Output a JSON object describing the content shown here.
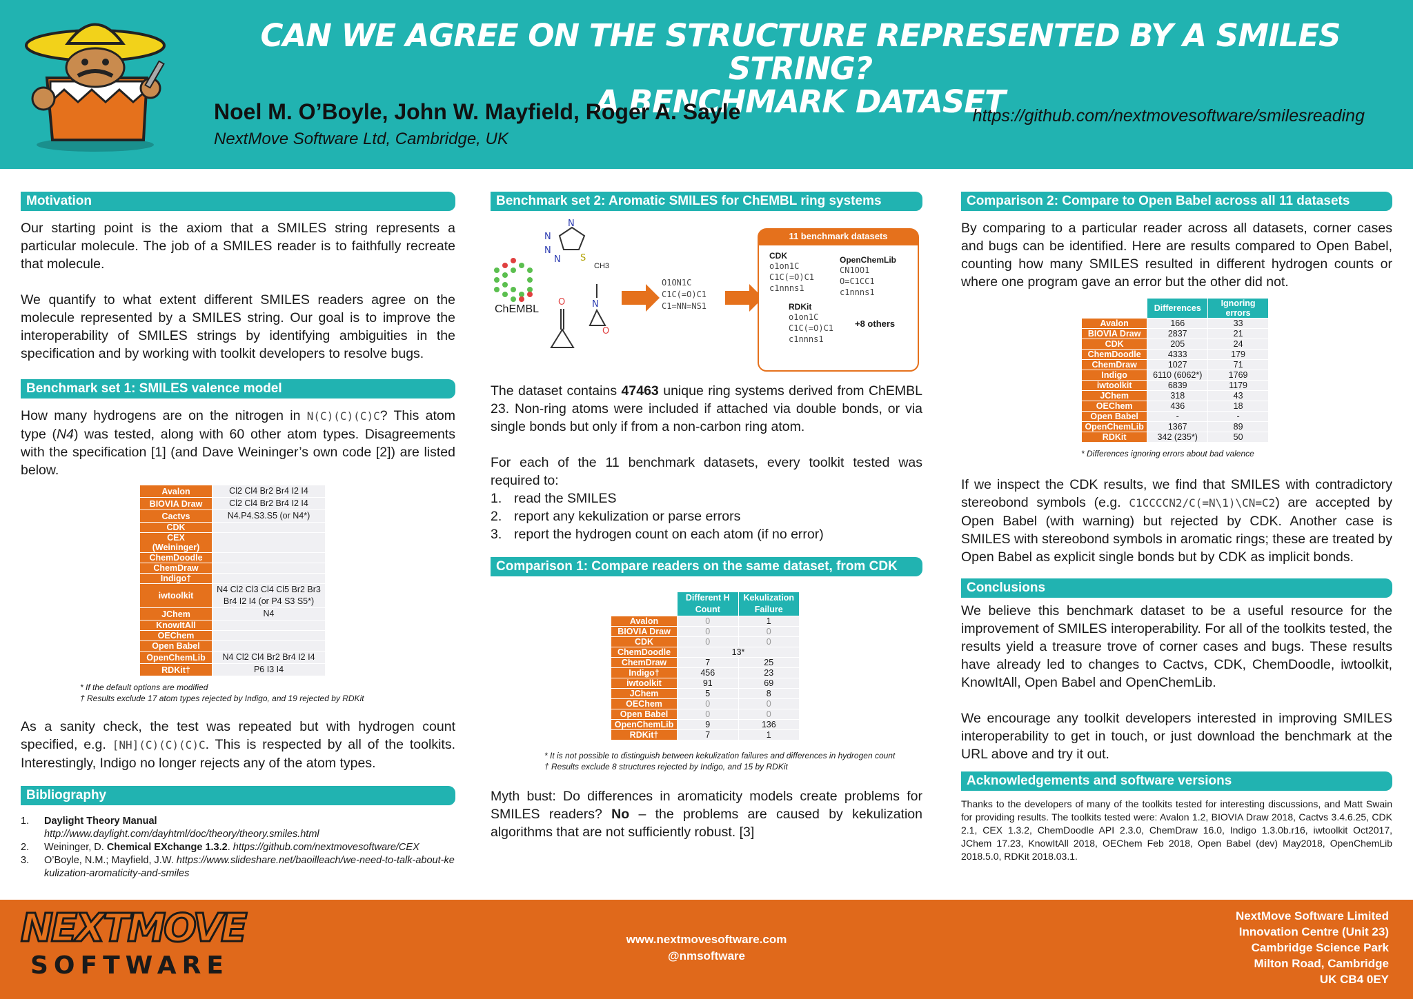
{
  "header": {
    "title_line1": "CAN WE AGREE ON THE STRUCTURE REPRESENTED BY A SMILES STRING?",
    "title_line2": "A BENCHMARK DATASET",
    "authors": "Noel M. O’Boyle, John W. Mayfield, Roger A. Sayle",
    "affiliation": "NextMove Software Ltd, Cambridge, UK",
    "url": "https://github.com/nextmovesoftware/smilesreading"
  },
  "motivation": {
    "heading": "Motivation",
    "p1": "Our starting point is the axiom that a SMILES string represents a particular molecule. The job of a SMILES reader is to faithfully recreate that molecule.",
    "p2": "We quantify to what extent different SMILES readers agree on the molecule represented by a SMILES string. Our goal is to improve the interoperability of SMILES strings by identifying ambiguities in the specification and by working with toolkit developers to resolve bugs."
  },
  "bench1": {
    "heading": "Benchmark set 1: SMILES valence model",
    "p1a": "How many hydrogens are on the nitrogen in",
    "p1code": "N(C)(C)(C)C",
    "p1b": "? This atom type (",
    "p1n4": "N4",
    "p1c": ") was tested, along with 60 other atom types. Disagreements with the specification [1] (and Dave Weininger’s own code [2]) are listed below.",
    "rows": [
      {
        "name": "Avalon",
        "val": "Cl2 Cl4 Br2 Br4 I2 I4"
      },
      {
        "name": "BIOVIA Draw",
        "val": "Cl2 Cl4 Br2 Br4 I2 I4"
      },
      {
        "name": "Cactvs",
        "val": "N4.P4.S3.S5 (or N4*)"
      },
      {
        "name": "CDK",
        "val": ""
      },
      {
        "name": "CEX (Weininger)",
        "val": ""
      },
      {
        "name": "ChemDoodle",
        "val": ""
      },
      {
        "name": "ChemDraw",
        "val": ""
      },
      {
        "name": "Indigo†",
        "val": ""
      },
      {
        "name": "iwtoolkit",
        "val": "N4 Cl2 Cl3 Cl4 Cl5 Br2 Br3 Br4 I2 I4 (or P4 S3 S5*)"
      },
      {
        "name": "JChem",
        "val": "N4"
      },
      {
        "name": "KnowItAll",
        "val": ""
      },
      {
        "name": "OEChem",
        "val": ""
      },
      {
        "name": "Open Babel",
        "val": ""
      },
      {
        "name": "OpenChemLib",
        "val": "N4 Cl2 Cl4 Br2 Br4 I2 I4"
      },
      {
        "name": "RDKit†",
        "val": "P6 I3 I4"
      }
    ],
    "note1": "* If the default options are modified",
    "note2": "† Results exclude 17 atom types rejected by Indigo, and 19 rejected by RDKit",
    "p2a": "As a sanity check, the test was repeated but with hydrogen count specified, e.g.",
    "p2code": "[NH](C)(C)(C)C",
    "p2b": ". This is respected by all of the toolkits. Interestingly, Indigo no longer rejects any of the atom types."
  },
  "biblio": {
    "heading": "Bibliography",
    "items": [
      {
        "n": "1.",
        "bold": "Daylight Theory Manual",
        "rest": "",
        "url": "http://www.daylight.com/dayhtml/doc/theory/theory.smiles.html"
      },
      {
        "n": "2.",
        "pre": "Weininger, D.",
        "bold": "Chemical EXchange 1.3.2",
        "url": "https://github.com/nextmovesoftware/CEX"
      },
      {
        "n": "3.",
        "pre": "O’Boyle, N.M.; Mayfield, J.W.",
        "url": "https://www.slideshare.net/baoilleach/we-need-to-talk-about-kekulization-aromaticity-and-smiles"
      }
    ]
  },
  "bench2": {
    "heading": "Benchmark set 2: Aromatic SMILES for ChEMBL ring systems",
    "chembl_label": "ChEMBL",
    "methyl_label": "CH3",
    "smiles_lines": [
      "O1ON1C",
      "C1C(=O)C1",
      "C1=NN=NS1"
    ],
    "box_title": "11 benchmark datasets",
    "cdk_label": "CDK",
    "cdk_lines": [
      "o1on1C",
      "C1C(=O)C1",
      "c1nnns1"
    ],
    "ocl_label": "OpenChemLib",
    "ocl_lines": [
      "CN1OO1",
      "O=C1CC1",
      "c1nnns1"
    ],
    "rdkit_label": "RDKit",
    "rdkit_lines": [
      "o1on1C",
      "C1C(=O)C1",
      "c1nnns1"
    ],
    "others": "+8 others",
    "p1a": "The dataset contains",
    "p1bold": "47463",
    "p1b": "unique ring systems derived from ChEMBL 23. Non-ring atoms were included if attached via double bonds, or via single bonds but only if from a non-carbon ring atom.",
    "p2": "For each of the 11 benchmark datasets, every toolkit tested was required to:",
    "steps": [
      "read the SMILES",
      "report any kekulization or parse errors",
      "report the hydrogen count on each atom (if no error)"
    ]
  },
  "comp1": {
    "heading": "Comparison 1: Compare readers on the same dataset, from CDK",
    "col1": "Different H Count",
    "col2": "Kekulization Failure",
    "rows": [
      {
        "name": "Avalon",
        "a": "0",
        "b": "1"
      },
      {
        "name": "BIOVIA Draw",
        "a": "0",
        "b": "0"
      },
      {
        "name": "CDK",
        "a": "0",
        "b": "0"
      },
      {
        "name": "ChemDoodle",
        "merged": "13*"
      },
      {
        "name": "ChemDraw",
        "a": "7",
        "b": "25"
      },
      {
        "name": "Indigo†",
        "a": "456",
        "b": "23"
      },
      {
        "name": "iwtoolkit",
        "a": "91",
        "b": "69"
      },
      {
        "name": "JChem",
        "a": "5",
        "b": "8"
      },
      {
        "name": "OEChem",
        "a": "0",
        "b": "0"
      },
      {
        "name": "Open Babel",
        "a": "0",
        "b": "0"
      },
      {
        "name": "OpenChemLib",
        "a": "9",
        "b": "136"
      },
      {
        "name": "RDKit†",
        "a": "7",
        "b": "1"
      }
    ],
    "note1": "* It is not possible to distinguish between kekulization failures and differences in hydrogen count",
    "note2": "† Results exclude 8 structures rejected by Indigo, and 15 by RDKit",
    "p_a": "Myth bust: Do differences in aromaticity models create problems for SMILES readers?",
    "p_bold": "No",
    "p_b": "– the problems are caused by kekulization algorithms that are not sufficiently robust. [3]"
  },
  "comp2": {
    "heading": "Comparison 2: Compare to Open Babel across all 11 datasets",
    "p1": "By comparing to a particular reader across all datasets, corner cases and bugs can be identified. Here are results compared to Open Babel, counting how many SMILES resulted in different hydrogen counts or where one program gave an error but the other did not.",
    "col1": "Differences",
    "col2": "Ignoring errors",
    "rows": [
      {
        "name": "Avalon",
        "a": "166",
        "b": "33"
      },
      {
        "name": "BIOVIA Draw",
        "a": "2837",
        "b": "21"
      },
      {
        "name": "CDK",
        "a": "205",
        "b": "24"
      },
      {
        "name": "ChemDoodle",
        "a": "4333",
        "b": "179"
      },
      {
        "name": "ChemDraw",
        "a": "1027",
        "b": "71"
      },
      {
        "name": "Indigo",
        "a": "6110 (6062*)",
        "b": "1769"
      },
      {
        "name": "iwtoolkit",
        "a": "6839",
        "b": "1179"
      },
      {
        "name": "JChem",
        "a": "318",
        "b": "43"
      },
      {
        "name": "OEChem",
        "a": "436",
        "b": "18"
      },
      {
        "name": "Open Babel",
        "a": "-",
        "b": "-"
      },
      {
        "name": "OpenChemLib",
        "a": "1367",
        "b": "89"
      },
      {
        "name": "RDKit",
        "a": "342 (235*)",
        "b": "50"
      }
    ],
    "note": "* Differences ignoring errors about bad valence",
    "p2a": "If we inspect the CDK results, we find that SMILES with contradictory stereobond symbols (e.g.",
    "p2code": "C1CCCCN2/C(=N\\1)\\CN=C2",
    "p2b": ") are accepted by Open Babel (with warning) but rejected by CDK. Another case is SMILES with stereobond symbols in aromatic rings; these are treated by Open Babel as explicit single bonds but by CDK as implicit bonds."
  },
  "conclusions": {
    "heading": "Conclusions",
    "p1": "We believe this benchmark dataset to be a useful resource for the improvement of SMILES interoperability. For all of the toolkits tested, the results yield a treasure trove of corner cases and bugs. These results have already led to changes to Cactvs, CDK, ChemDoodle, iwtoolkit, KnowItAll, Open Babel and OpenChemLib.",
    "p2": "We encourage any toolkit developers interested in improving SMILES interoperability to get in touch, or just download the benchmark at the URL above and try it out."
  },
  "ack": {
    "heading": "Acknowledgements and software versions",
    "text": "Thanks to the developers of many of the toolkits tested for interesting discussions, and Matt Swain for providing results. The toolkits tested were: Avalon 1.2, BIOVIA Draw 2018, Cactvs 3.4.6.25, CDK 2.1, CEX 1.3.2, ChemDoodle API 2.3.0, ChemDraw 16.0, Indigo 1.3.0b.r16, iwtoolkit Oct2017, JChem 17.23, KnowItAll 2018, OEChem Feb 2018, Open Babel (dev) May2018, OpenChemLib 2018.5.0, RDKit 2018.03.1."
  },
  "footer": {
    "logo_top": "NEXTMOVE",
    "logo_bottom": "SOFTWARE",
    "web": "www.nextmovesoftware.com",
    "twitter": "@nmsoftware",
    "address": [
      "NextMove Software Limited",
      "Innovation Centre (Unit 23)",
      "Cambridge Science Park",
      "Milton Road, Cambridge",
      "UK  CB4 0EY"
    ]
  },
  "colors": {
    "teal": "#21b3b1",
    "orange": "#e5711c"
  }
}
